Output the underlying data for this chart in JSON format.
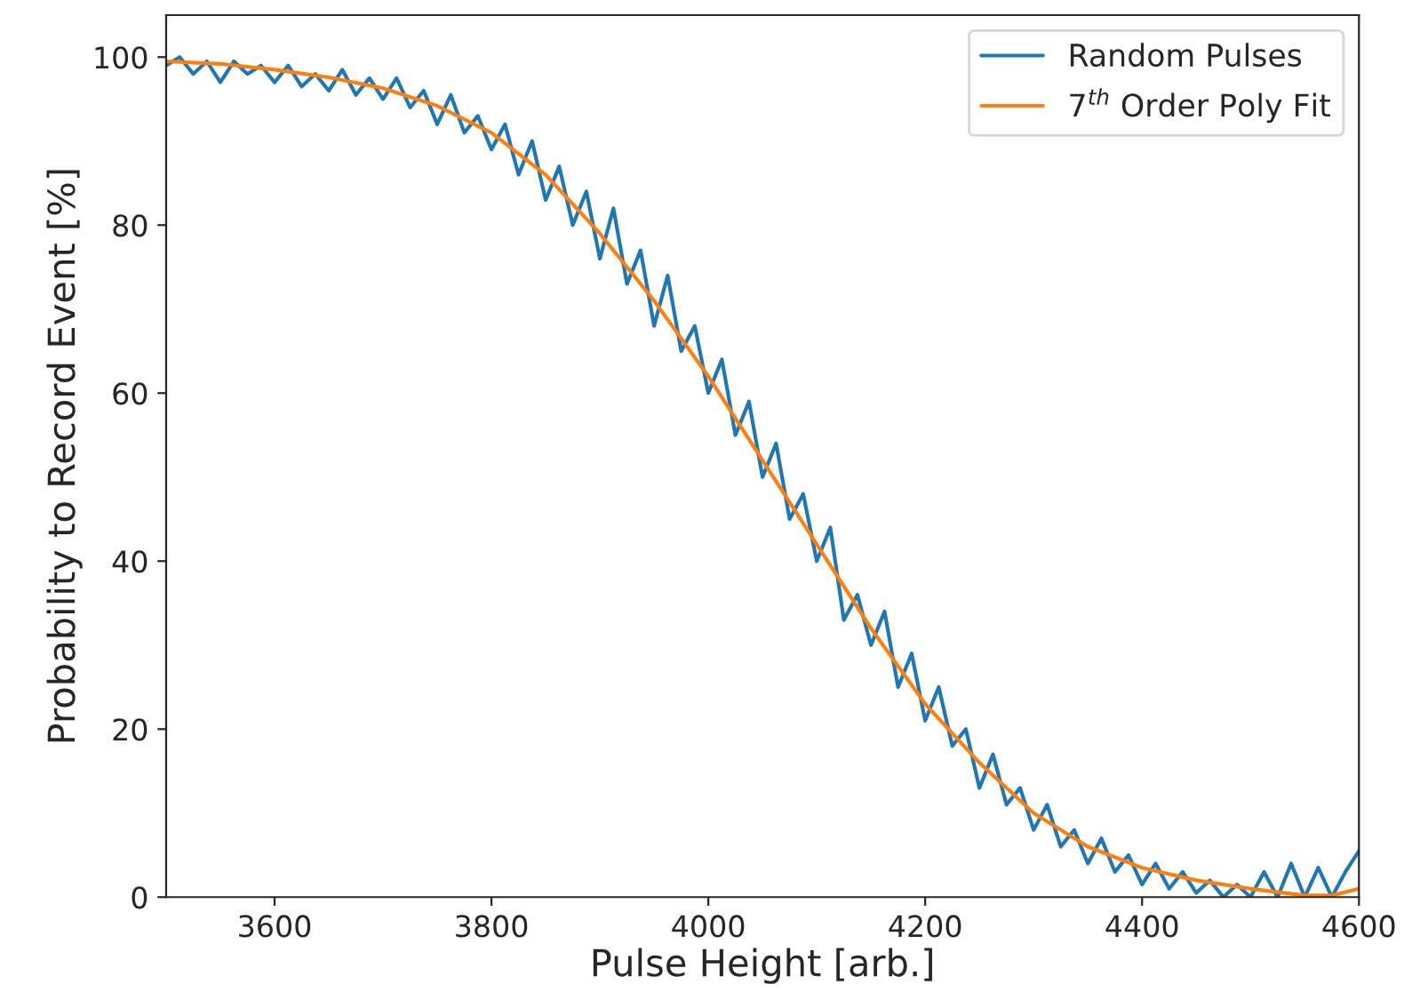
{
  "chart_data": {
    "type": "line",
    "xlabel": "Pulse Height [arb.]",
    "ylabel": "Probability to Record Event [%]",
    "xlim": [
      3500,
      4600
    ],
    "xticks": [
      3600,
      3800,
      4000,
      4200,
      4400,
      4600
    ],
    "ylim": [
      0,
      105
    ],
    "yticks": [
      0,
      20,
      40,
      60,
      80,
      100
    ],
    "grid": false,
    "legend": "top right",
    "marker": "none",
    "line_style": "solid",
    "series": [
      {
        "name": "Random Pulses",
        "color": "#1f77b4",
        "x": [
          3500,
          3512.5,
          3525,
          3537.5,
          3550,
          3562.5,
          3575,
          3587.5,
          3600,
          3612.5,
          3625,
          3637.5,
          3650,
          3662.5,
          3675,
          3687.5,
          3700,
          3712.5,
          3725,
          3737.5,
          3750,
          3762.5,
          3775,
          3787.5,
          3800,
          3812.5,
          3825,
          3837.5,
          3850,
          3862.5,
          3875,
          3887.5,
          3900,
          3912.5,
          3925,
          3937.5,
          3950,
          3962.5,
          3975,
          3987.5,
          4000,
          4012.5,
          4025,
          4037.5,
          4050,
          4062.5,
          4075,
          4087.5,
          4100,
          4112.5,
          4125,
          4137.5,
          4150,
          4162.5,
          4175,
          4187.5,
          4200,
          4212.5,
          4225,
          4237.5,
          4250,
          4262.5,
          4275,
          4287.5,
          4300,
          4312.5,
          4325,
          4337.5,
          4350,
          4362.5,
          4375,
          4387.5,
          4400,
          4412.5,
          4425,
          4437.5,
          4450,
          4462.5,
          4475,
          4487.5,
          4500,
          4512.5,
          4525,
          4537.5,
          4550,
          4562.5,
          4575,
          4587.5,
          4600
        ],
        "values": [
          99,
          100,
          98,
          99.5,
          97,
          99.5,
          98,
          99,
          97,
          99,
          96.5,
          98,
          96,
          98.5,
          95.5,
          97.5,
          95,
          97.5,
          94,
          96,
          92,
          95.5,
          91,
          93,
          89,
          92,
          86,
          90,
          83,
          87,
          80,
          84,
          76,
          82,
          73,
          77,
          68,
          74,
          65,
          68,
          60,
          64,
          55,
          59,
          50,
          54,
          45,
          48,
          40,
          44,
          33,
          36,
          30,
          34,
          25,
          29,
          21,
          25,
          18,
          20,
          13,
          17,
          11,
          13,
          8,
          11,
          6,
          8,
          4,
          7,
          3,
          5,
          1.5,
          4,
          1,
          3,
          0.5,
          2,
          0,
          1.5,
          0,
          3,
          0,
          4,
          0,
          3.5,
          0,
          3,
          5.5
        ]
      },
      {
        "name": "7$^{th}$ Order Poly Fit",
        "color": "#ff7f0e",
        "x": [
          3500,
          3550,
          3600,
          3650,
          3700,
          3750,
          3800,
          3850,
          3900,
          3950,
          4000,
          4050,
          4100,
          4150,
          4200,
          4250,
          4300,
          4350,
          4400,
          4450,
          4500,
          4550,
          4575,
          4600
        ],
        "values": [
          99.5,
          99.2,
          98.5,
          97.6,
          96.3,
          94.2,
          91,
          86,
          79,
          71,
          62,
          52,
          42,
          32,
          23,
          16,
          10,
          6,
          3.5,
          2,
          1,
          0.2,
          0.2,
          1
        ]
      }
    ]
  }
}
